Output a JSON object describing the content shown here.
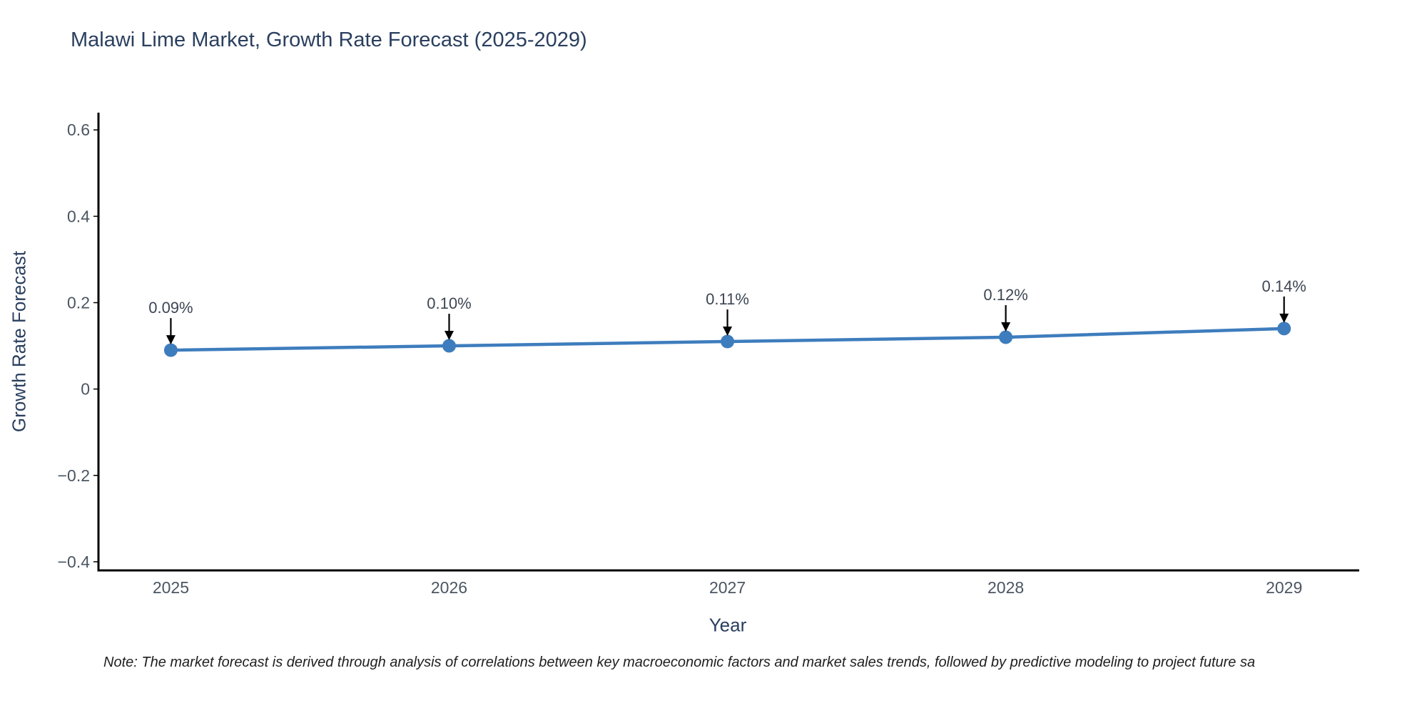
{
  "chart": {
    "note": "Note: The market forecast is derived through analysis of correlations between key macroeconomic factors and market sales trends, followed by predictive modeling to project future sa"
  },
  "chart_data": {
    "type": "line",
    "title": "Malawi Lime Market, Growth Rate Forecast (2025-2029)",
    "xlabel": "Year",
    "ylabel": "Growth Rate Forecast",
    "x": [
      2025,
      2026,
      2027,
      2028,
      2029
    ],
    "x_tick_labels": [
      "2025",
      "2026",
      "2027",
      "2028",
      "2029"
    ],
    "series": [
      {
        "name": "Growth Rate Forecast",
        "values": [
          0.09,
          0.1,
          0.11,
          0.12,
          0.14
        ]
      }
    ],
    "point_labels": [
      "0.09%",
      "0.10%",
      "0.11%",
      "0.12%",
      "0.14%"
    ],
    "yticks": [
      -0.4,
      -0.2,
      0,
      0.2,
      0.4,
      0.6
    ],
    "ytick_labels": [
      "−0.4",
      "−0.2",
      "0",
      "0.2",
      "0.4",
      "0.6"
    ],
    "ylim": [
      -0.42,
      0.64
    ],
    "xlim": [
      2024.74,
      2029.27
    ],
    "grid": false,
    "legend": false,
    "line_color": "#3e7dbd",
    "marker_color": "#3e7dbd",
    "axis_color": "#000000",
    "annotation_color": "#3d4654",
    "annotation_arrow_color": "#000000",
    "tick_label_color": "#4b5562"
  }
}
